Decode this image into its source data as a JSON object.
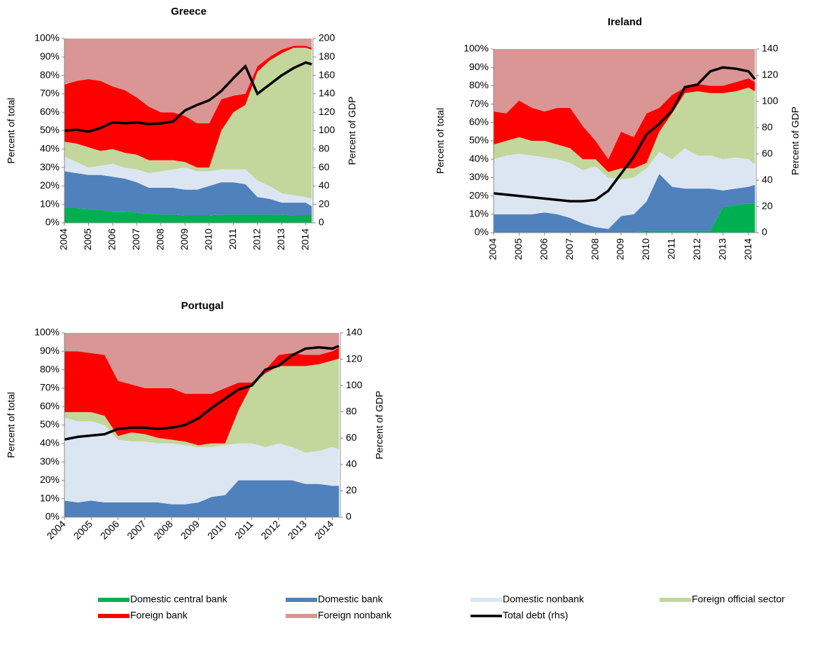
{
  "chart_data": [
    {
      "type": "area",
      "title": "Greece",
      "ylabel": "Percent of total",
      "y2label": "Percent of GDP",
      "x": [
        2004,
        2004.5,
        2005,
        2005.5,
        2006,
        2006.5,
        2007,
        2007.5,
        2008,
        2008.5,
        2009,
        2009.5,
        2010,
        2010.5,
        2011,
        2011.5,
        2012,
        2012.5,
        2013,
        2013.5,
        2014,
        2014.25
      ],
      "xlim": [
        2004,
        2014.3
      ],
      "xticks": [
        2004,
        2005,
        2006,
        2007,
        2008,
        2009,
        2010,
        2011,
        2012,
        2013,
        2014
      ],
      "ylim": [
        0,
        100
      ],
      "yticks": [
        {
          "value": 0,
          "label": "0%"
        },
        {
          "value": 10,
          "label": "10%"
        },
        {
          "value": 20,
          "label": "20%"
        },
        {
          "value": 30,
          "label": "30%"
        },
        {
          "value": 40,
          "label": "40%"
        },
        {
          "value": 50,
          "label": "50%"
        },
        {
          "value": 60,
          "label": "60%"
        },
        {
          "value": 70,
          "label": "70%"
        },
        {
          "value": 80,
          "label": "80%"
        },
        {
          "value": 90,
          "label": "90%"
        },
        {
          "value": 100,
          "label": "100%"
        }
      ],
      "y2lim": [
        0,
        200
      ],
      "y2ticks": [
        0,
        20,
        40,
        60,
        80,
        100,
        120,
        140,
        160,
        180,
        200
      ],
      "series": [
        {
          "name": "Domestic central bank",
          "color": "#00b050",
          "values": [
            8,
            8,
            7.5,
            7,
            6,
            6,
            5.5,
            5,
            4.5,
            4.5,
            4,
            4,
            4,
            4.5,
            4.5,
            4.5,
            4.5,
            4.5,
            4.5,
            4,
            4,
            4
          ]
        },
        {
          "name": "Domestic bank",
          "color": "#4f81bd",
          "values": [
            20,
            19,
            18.5,
            19,
            19,
            18,
            16.5,
            14,
            14.5,
            14.5,
            14,
            14,
            16,
            17.5,
            17.5,
            16.5,
            9.5,
            8.5,
            6.5,
            7,
            7,
            5
          ]
        },
        {
          "name": "Domestic nonbank",
          "color": "#dce6f2",
          "values": [
            8,
            6,
            4,
            5,
            7,
            6,
            7,
            8,
            9,
            10,
            12,
            10,
            8,
            7,
            7,
            8,
            9,
            7,
            5,
            4,
            3,
            4
          ]
        },
        {
          "name": "Foreign official sector",
          "color": "#c3d69b",
          "values": [
            8,
            10,
            11,
            8,
            8,
            8,
            8,
            7,
            6,
            5,
            3,
            2,
            2,
            21,
            31,
            35,
            59,
            68,
            76,
            80,
            81,
            81
          ]
        },
        {
          "name": "Foreign bank",
          "color": "#ff0000",
          "values": [
            31,
            34,
            37,
            38,
            34,
            34,
            31,
            29,
            26,
            26,
            25,
            24,
            24,
            17,
            9,
            6,
            3,
            2,
            2,
            1,
            1,
            1
          ]
        },
        {
          "name": "Foreign nonbank",
          "color": "#d99694",
          "values": [
            25,
            23,
            22,
            23,
            26,
            28,
            32,
            37,
            40,
            40,
            42,
            46,
            46,
            33,
            31,
            30,
            15,
            10,
            6,
            4,
            4,
            5
          ]
        },
        {
          "name": "Total debt (rhs)",
          "color": "#000000",
          "axis": "y2",
          "type": "line",
          "values": [
            100,
            101,
            99,
            103,
            109,
            108,
            109,
            107,
            108,
            110,
            122,
            128,
            133,
            143,
            157,
            170,
            140,
            150,
            160,
            168,
            174,
            172
          ]
        }
      ]
    },
    {
      "type": "area",
      "title": "Ireland",
      "ylabel": "Percent of total",
      "y2label": "Percent of GDP",
      "x": [
        2004,
        2004.5,
        2005,
        2005.5,
        2006,
        2006.5,
        2007,
        2007.5,
        2008,
        2008.5,
        2009,
        2009.5,
        2010,
        2010.5,
        2011,
        2011.5,
        2012,
        2012.5,
        2013,
        2013.5,
        2014,
        2014.25
      ],
      "xlim": [
        2004,
        2014.3
      ],
      "xticks": [
        2004,
        2005,
        2006,
        2007,
        2008,
        2009,
        2010,
        2011,
        2012,
        2013,
        2014
      ],
      "ylim": [
        0,
        100
      ],
      "yticks": [
        {
          "value": 0,
          "label": "0%"
        },
        {
          "value": 10,
          "label": "10%"
        },
        {
          "value": 20,
          "label": "20%"
        },
        {
          "value": 30,
          "label": "30%"
        },
        {
          "value": 40,
          "label": "40%"
        },
        {
          "value": 50,
          "label": "50%"
        },
        {
          "value": 60,
          "label": "60%"
        },
        {
          "value": 70,
          "label": "70%"
        },
        {
          "value": 80,
          "label": "80%"
        },
        {
          "value": 90,
          "label": "90%"
        },
        {
          "value": 100,
          "label": "100%"
        }
      ],
      "y2lim": [
        0,
        140
      ],
      "y2ticks": [
        0,
        20,
        40,
        60,
        80,
        100,
        120,
        140
      ],
      "series": [
        {
          "name": "Domestic central bank",
          "color": "#00b050",
          "values": [
            0,
            0,
            0,
            0,
            0,
            0,
            0,
            0,
            0,
            0,
            0,
            0,
            1,
            1,
            1,
            1,
            1,
            1,
            14,
            15,
            16,
            16
          ]
        },
        {
          "name": "Domestic bank",
          "color": "#4f81bd",
          "values": [
            10,
            10,
            10,
            10,
            11,
            10,
            8,
            5,
            3,
            2,
            9,
            10,
            16,
            31,
            24,
            23,
            23,
            23,
            9,
            9,
            9,
            10
          ]
        },
        {
          "name": "Domestic nonbank",
          "color": "#dce6f2",
          "values": [
            30,
            32,
            33,
            32,
            30,
            30,
            30,
            29,
            33,
            28,
            20,
            20,
            18,
            12,
            15,
            22,
            18,
            18,
            17,
            17,
            15,
            11
          ]
        },
        {
          "name": "Foreign official sector",
          "color": "#c3d69b",
          "values": [
            8,
            8,
            9,
            8,
            9,
            8,
            8,
            6,
            4,
            3,
            6,
            5,
            3,
            11,
            25,
            30,
            35,
            34,
            36,
            36,
            39,
            40
          ]
        },
        {
          "name": "Foreign bank",
          "color": "#ff0000",
          "values": [
            18,
            15,
            20,
            18,
            16,
            20,
            22,
            18,
            10,
            7,
            20,
            17,
            27,
            13,
            10,
            3,
            4,
            4,
            4,
            5,
            5,
            5
          ]
        },
        {
          "name": "Foreign nonbank",
          "color": "#d99694",
          "values": [
            34,
            35,
            28,
            32,
            34,
            32,
            32,
            42,
            50,
            60,
            45,
            48,
            35,
            32,
            25,
            21,
            19,
            20,
            20,
            18,
            16,
            18
          ]
        },
        {
          "name": "Total debt (rhs)",
          "color": "#000000",
          "axis": "y2",
          "type": "line",
          "values": [
            30,
            29,
            28,
            27,
            26,
            25,
            24,
            24,
            25,
            32,
            45,
            58,
            75,
            83,
            93,
            111,
            113,
            123,
            126,
            125,
            123,
            117
          ]
        }
      ]
    },
    {
      "type": "area",
      "title": "Portugal",
      "ylabel": "Percent of total",
      "y2label": "Percent of GDP",
      "x": [
        2004,
        2004.5,
        2005,
        2005.5,
        2006,
        2006.5,
        2007,
        2007.5,
        2008,
        2008.5,
        2009,
        2009.5,
        2010,
        2010.5,
        2011,
        2011.5,
        2012,
        2012.5,
        2013,
        2013.5,
        2014,
        2014.25
      ],
      "xlim": [
        2004,
        2014.3
      ],
      "xticks": [
        2004,
        2005,
        2006,
        2007,
        2008,
        2009,
        2010,
        2011,
        2012,
        2013,
        2014
      ],
      "ylim": [
        0,
        100
      ],
      "yticks": [
        {
          "value": 0,
          "label": "0%"
        },
        {
          "value": 10,
          "label": "10%"
        },
        {
          "value": 20,
          "label": "20%"
        },
        {
          "value": 30,
          "label": "30%"
        },
        {
          "value": 40,
          "label": "40%"
        },
        {
          "value": 50,
          "label": "50%"
        },
        {
          "value": 60,
          "label": "60%"
        },
        {
          "value": 70,
          "label": "70%"
        },
        {
          "value": 80,
          "label": "80%"
        },
        {
          "value": 90,
          "label": "90%"
        },
        {
          "value": 100,
          "label": "100%"
        }
      ],
      "y2lim": [
        0,
        140
      ],
      "y2ticks": [
        0,
        20,
        40,
        60,
        80,
        100,
        120,
        140
      ],
      "series": [
        {
          "name": "Domestic central bank",
          "color": "#00b050",
          "values": [
            0,
            0,
            0,
            0,
            0,
            0,
            0,
            0,
            0,
            0,
            0,
            0,
            0,
            0,
            0,
            0,
            0,
            0,
            0,
            0,
            0,
            0
          ]
        },
        {
          "name": "Domestic bank",
          "color": "#4f81bd",
          "values": [
            9,
            8,
            9,
            8,
            8,
            8,
            8,
            8,
            7,
            7,
            8,
            11,
            12,
            20,
            20,
            20,
            20,
            20,
            18,
            18,
            17,
            17
          ]
        },
        {
          "name": "Domestic nonbank",
          "color": "#dce6f2",
          "values": [
            45,
            44,
            43,
            42,
            34,
            33,
            33,
            32,
            33,
            32,
            30,
            27,
            27,
            20,
            20,
            18,
            20,
            18,
            17,
            18,
            21,
            20
          ]
        },
        {
          "name": "Foreign official sector",
          "color": "#c3d69b",
          "values": [
            3,
            5,
            5,
            5,
            2,
            5,
            4,
            3,
            2,
            2,
            1,
            2,
            1,
            18,
            32,
            40,
            42,
            44,
            47,
            47,
            47,
            49
          ]
        },
        {
          "name": "Foreign bank",
          "color": "#ff0000",
          "values": [
            33,
            33,
            32,
            33,
            30,
            26,
            25,
            27,
            28,
            26,
            28,
            27,
            30,
            15,
            1,
            2,
            6,
            7,
            6,
            5,
            5,
            6
          ]
        },
        {
          "name": "Foreign nonbank",
          "color": "#d99694",
          "values": [
            10,
            10,
            11,
            12,
            26,
            28,
            30,
            30,
            30,
            33,
            33,
            33,
            30,
            27,
            27,
            20,
            12,
            11,
            12,
            12,
            10,
            8
          ]
        },
        {
          "name": "Total debt (rhs)",
          "color": "#000000",
          "axis": "y2",
          "type": "line",
          "values": [
            59,
            61,
            62,
            63,
            67,
            68,
            68,
            67,
            68,
            70,
            75,
            83,
            90,
            97,
            100,
            112,
            115,
            123,
            128,
            129,
            128,
            130
          ]
        }
      ]
    }
  ]
}
